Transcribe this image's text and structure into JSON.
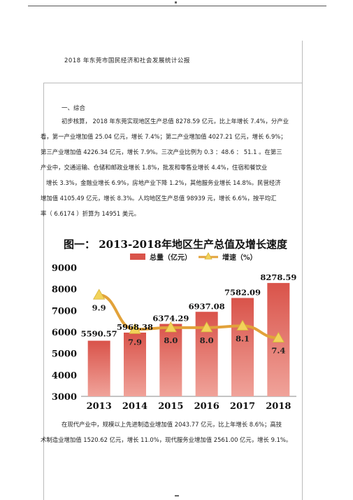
{
  "document": {
    "title": "2018 年东莞市国民经济和社会发展统计公报",
    "section_heading": "一、综合",
    "paragraph1_lines": [
      "初步核算， 2018 年东莞实现地区生产总值 8278.59 亿元，比上年增长 7.4%，分产业",
      "看，第一产业增加值 25.04 亿元，增长 7.4%；第二产业增加值 4027.21 亿元，增长 6.9%；",
      "第三产业增加值 4226.34 亿元，增长 7.9%。三次产业比例为 0.3 ：48.6 ： 51.1 。在第三",
      "产业中，交通运输、仓储和邮政业增长 1.8%，批发和零售业增长 4.4%，住宿和餐饮业",
      "增长 3.3%，金融业增长 6.9%，房地产业下降 1.2%，其他服务业增长 14.8%。民营经济",
      "增加值 4105.49 亿元，增长 8.3%。人均地区生产总值 98939 元，增长 6.6%，按平均汇",
      "率（ 6.6174 ）折算为 14951 美元。"
    ],
    "paragraph2_lines": [
      "在现代产业中，规模以上先进制造业增加值 2043.77 亿元，比上年增长 8.6%；高技",
      "术制造业增加值 1520.62 亿元，增长 11.0%，现代服务业增加值 2561.00 亿元，增长 9.1%。"
    ]
  },
  "chart_data": {
    "type": "bar",
    "title": "图一：  2013-2018年地区生产总值及增长速度",
    "categories": [
      "2013",
      "2014",
      "2015",
      "2016",
      "2017",
      "2018"
    ],
    "series": [
      {
        "name": "总量（亿元）",
        "type": "bar",
        "values": [
          5590.57,
          5968.38,
          6374.29,
          6937.08,
          7582.09,
          8278.59
        ]
      },
      {
        "name": "增速（%）",
        "type": "line",
        "values": [
          9.9,
          7.9,
          8.0,
          8.0,
          8.1,
          7.4
        ]
      }
    ],
    "value_labels": {
      "bar": [
        "5590.57",
        "5968.38",
        "6374.29",
        "6937.08",
        "7582.09",
        "8278.59"
      ],
      "line": [
        "9.9",
        "7.9",
        "8.0",
        "8.0",
        "8.1",
        "7.4"
      ]
    },
    "y_ticks": [
      "9000",
      "8000",
      "7000",
      "6000",
      "5000",
      "4000",
      "3000"
    ],
    "ylim": [
      3000,
      9000
    ],
    "legend_position": "top",
    "colors": {
      "bar": "#d9534a",
      "line": "#e2a23a",
      "marker": "#f2d35a"
    }
  }
}
